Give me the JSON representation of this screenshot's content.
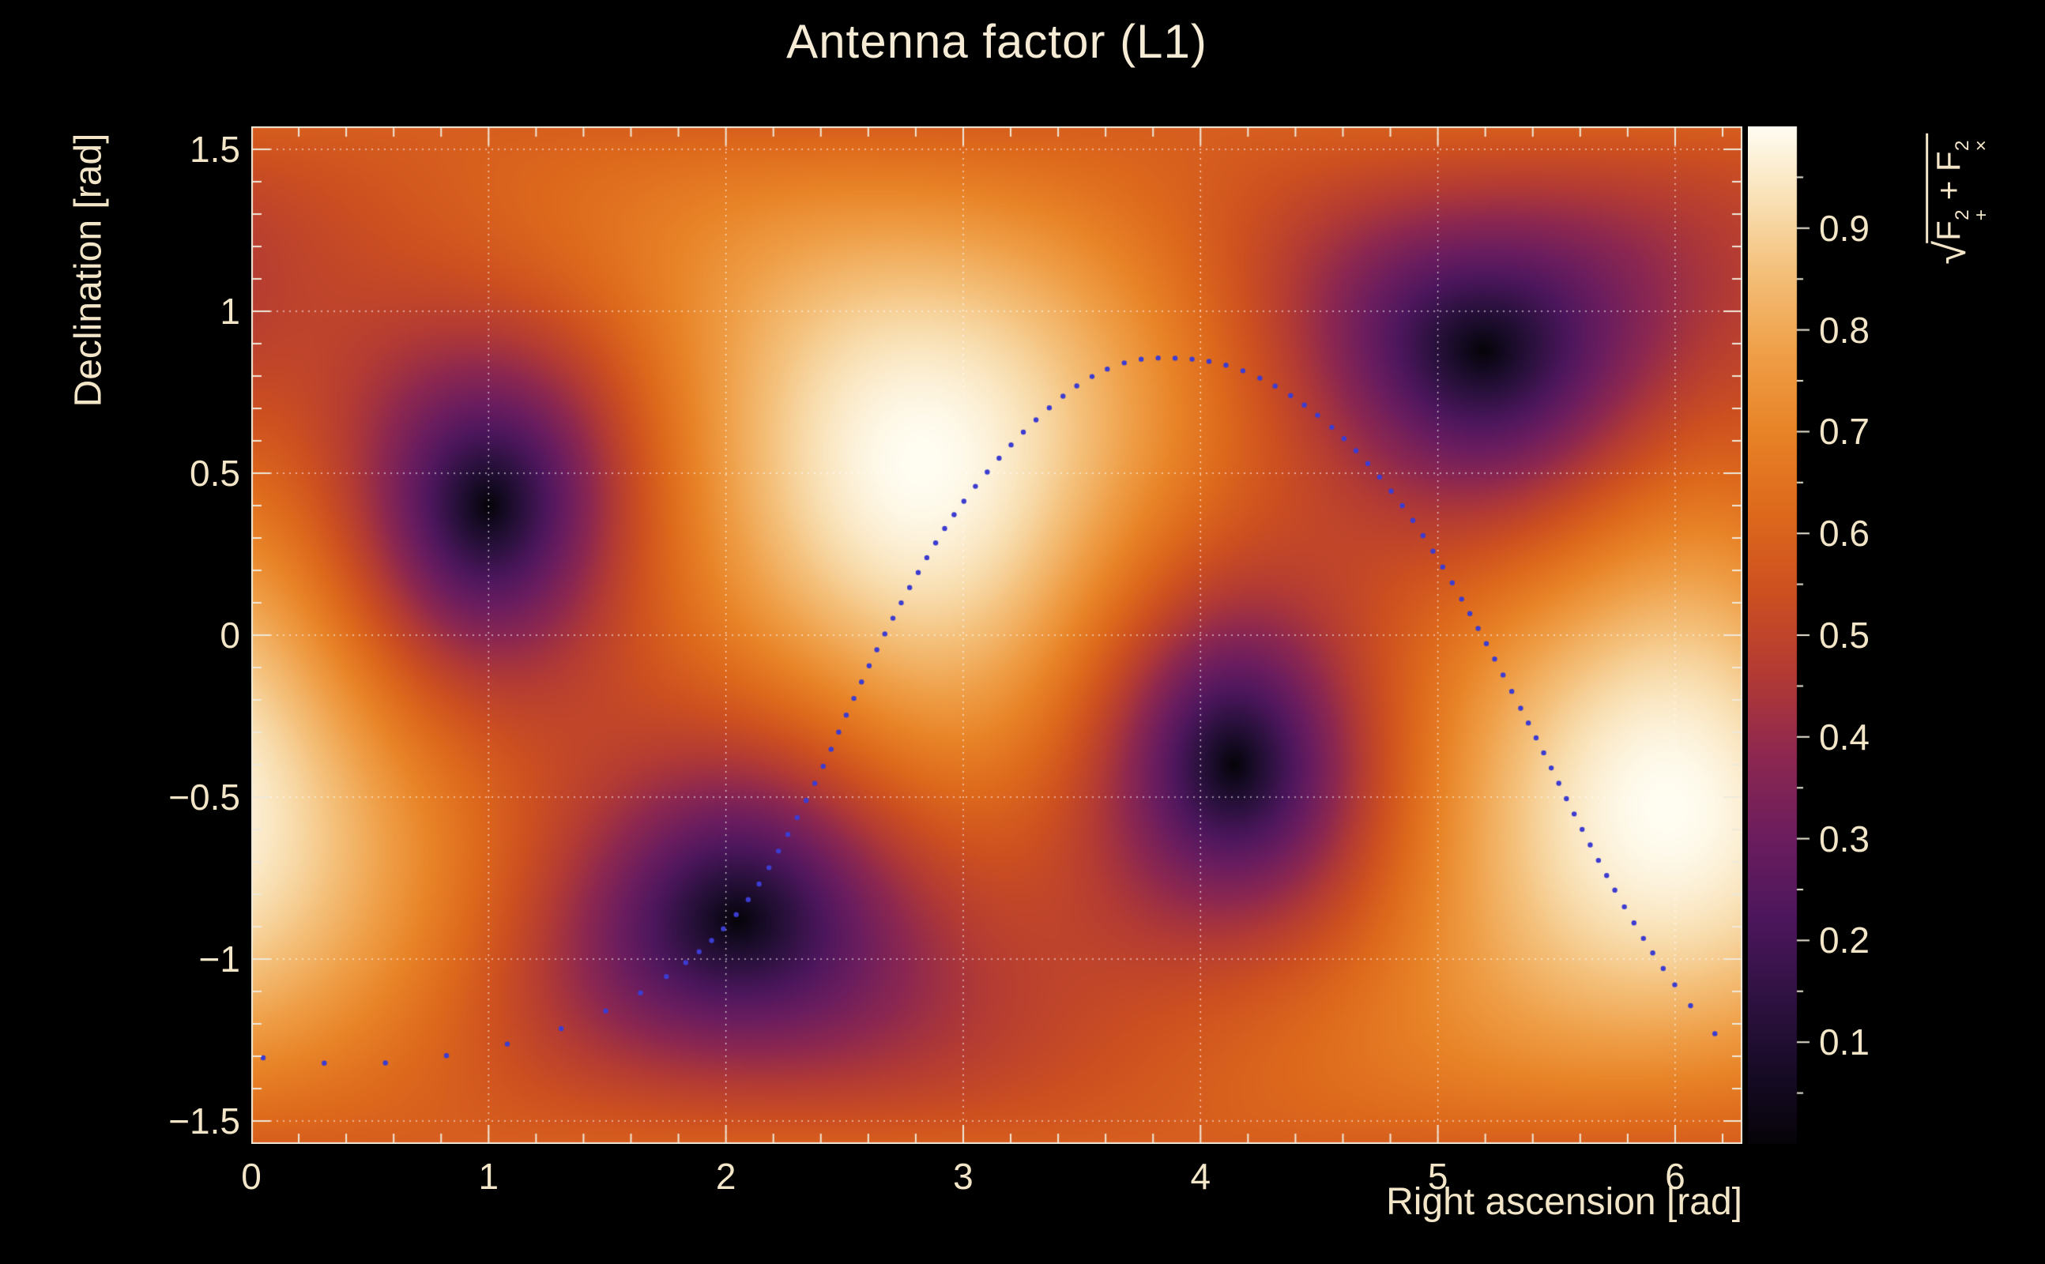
{
  "title": "Antenna factor (L1)",
  "colors": {
    "background": "#000000",
    "text": "#f3e6c8",
    "frame": "#efe9da",
    "grid_line": "#ffffff",
    "track_dot": "#3c3cd0",
    "palette_stops": [
      {
        "t": 0.0,
        "c": "#060308"
      },
      {
        "t": 0.06,
        "c": "#140a22"
      },
      {
        "t": 0.14,
        "c": "#2d1140"
      },
      {
        "t": 0.22,
        "c": "#4c165c"
      },
      {
        "t": 0.3,
        "c": "#6b1d5e"
      },
      {
        "t": 0.38,
        "c": "#8c2750"
      },
      {
        "t": 0.46,
        "c": "#b23a35"
      },
      {
        "t": 0.54,
        "c": "#cc4f20"
      },
      {
        "t": 0.62,
        "c": "#dd691c"
      },
      {
        "t": 0.7,
        "c": "#e88327"
      },
      {
        "t": 0.78,
        "c": "#efa049"
      },
      {
        "t": 0.86,
        "c": "#f4c17c"
      },
      {
        "t": 0.92,
        "c": "#f8ddae"
      },
      {
        "t": 1.0,
        "c": "#fffdf2"
      }
    ]
  },
  "axes": {
    "x": {
      "label": "Right ascension [rad]"
    },
    "y": {
      "label": "Declination [rad]"
    },
    "z": {
      "radical": "√",
      "f": "F",
      "sup": "2",
      "sub_plus": "+",
      "plus": " + ",
      "sub_cross": "×"
    }
  },
  "chart_data": {
    "type": "heatmap",
    "title": "Antenna factor (L1)",
    "xlabel": "Right ascension [rad]",
    "ylabel": "Declination [rad]",
    "zlabel": "sqrt(F+^2 + Fx^2)",
    "x_range": [
      0,
      6.2832
    ],
    "y_range": [
      -1.5708,
      1.5708
    ],
    "z_range": [
      0,
      1
    ],
    "x_ticks": {
      "values": [
        0,
        1,
        2,
        3,
        4,
        5,
        6
      ],
      "labels": [
        "0",
        "1",
        "2",
        "3",
        "4",
        "5",
        "6"
      ],
      "minor_step": 0.2
    },
    "y_ticks": {
      "values": [
        1.5,
        1,
        0.5,
        0,
        -0.5,
        -1,
        -1.5
      ],
      "labels": [
        "1.5",
        "1",
        "0.5",
        "0",
        "−0.5",
        "−1",
        "−1.5"
      ],
      "minor_step": 0.1
    },
    "z_ticks": {
      "values": [
        0.1,
        0.2,
        0.3,
        0.4,
        0.5,
        0.6,
        0.7,
        0.8,
        0.9
      ],
      "labels": [
        "0.1",
        "0.2",
        "0.3",
        "0.4",
        "0.5",
        "0.6",
        "0.7",
        "0.8",
        "0.9"
      ],
      "minor_step": 0.05
    },
    "grid": true,
    "legend_position": "right-colorbar",
    "model": "sqrt(F_plus^2 + F_cross^2) antenna power pattern of an L-shaped interferometer (LIGO L1): zero response at four null sky positions (two antipodal pairs on the detector-plane great circle), maximum 1 at the two sky positions normal to the detector plane",
    "null_points": [
      {
        "ra": 1.0,
        "dec": 0.4
      },
      {
        "ra": 2.05,
        "dec": -0.88
      },
      {
        "ra": 4.14,
        "dec": -0.4
      },
      {
        "ra": 5.19,
        "dec": 0.88
      }
    ],
    "max_points": [
      {
        "ra": 2.82,
        "dec": 0.53
      },
      {
        "ra": 5.96,
        "dec": -0.53
      }
    ],
    "overlay_track": {
      "style": "dotted",
      "color": "#3c3cd0",
      "points": [
        [
          0.05,
          -1.305
        ],
        [
          0.45,
          -1.325
        ],
        [
          0.85,
          -1.295
        ],
        [
          1.22,
          -1.235
        ],
        [
          1.55,
          -1.14
        ],
        [
          1.85,
          -1.0
        ],
        [
          2.08,
          -0.83
        ],
        [
          2.25,
          -0.63
        ],
        [
          2.4,
          -0.42
        ],
        [
          2.53,
          -0.21
        ],
        [
          2.66,
          -0.01
        ],
        [
          2.8,
          0.18
        ],
        [
          2.95,
          0.36
        ],
        [
          3.12,
          0.52
        ],
        [
          3.3,
          0.66
        ],
        [
          3.5,
          0.78
        ],
        [
          3.7,
          0.845
        ],
        [
          3.9,
          0.855
        ],
        [
          4.1,
          0.835
        ],
        [
          4.3,
          0.775
        ],
        [
          4.5,
          0.675
        ],
        [
          4.68,
          0.55
        ],
        [
          4.85,
          0.4
        ],
        [
          5.0,
          0.235
        ],
        [
          5.14,
          0.06
        ],
        [
          5.28,
          -0.13
        ],
        [
          5.43,
          -0.34
        ],
        [
          5.58,
          -0.56
        ],
        [
          5.74,
          -0.78
        ],
        [
          5.9,
          -0.975
        ],
        [
          6.05,
          -1.13
        ],
        [
          6.18,
          -1.24
        ],
        [
          6.28,
          -1.3
        ]
      ]
    }
  }
}
